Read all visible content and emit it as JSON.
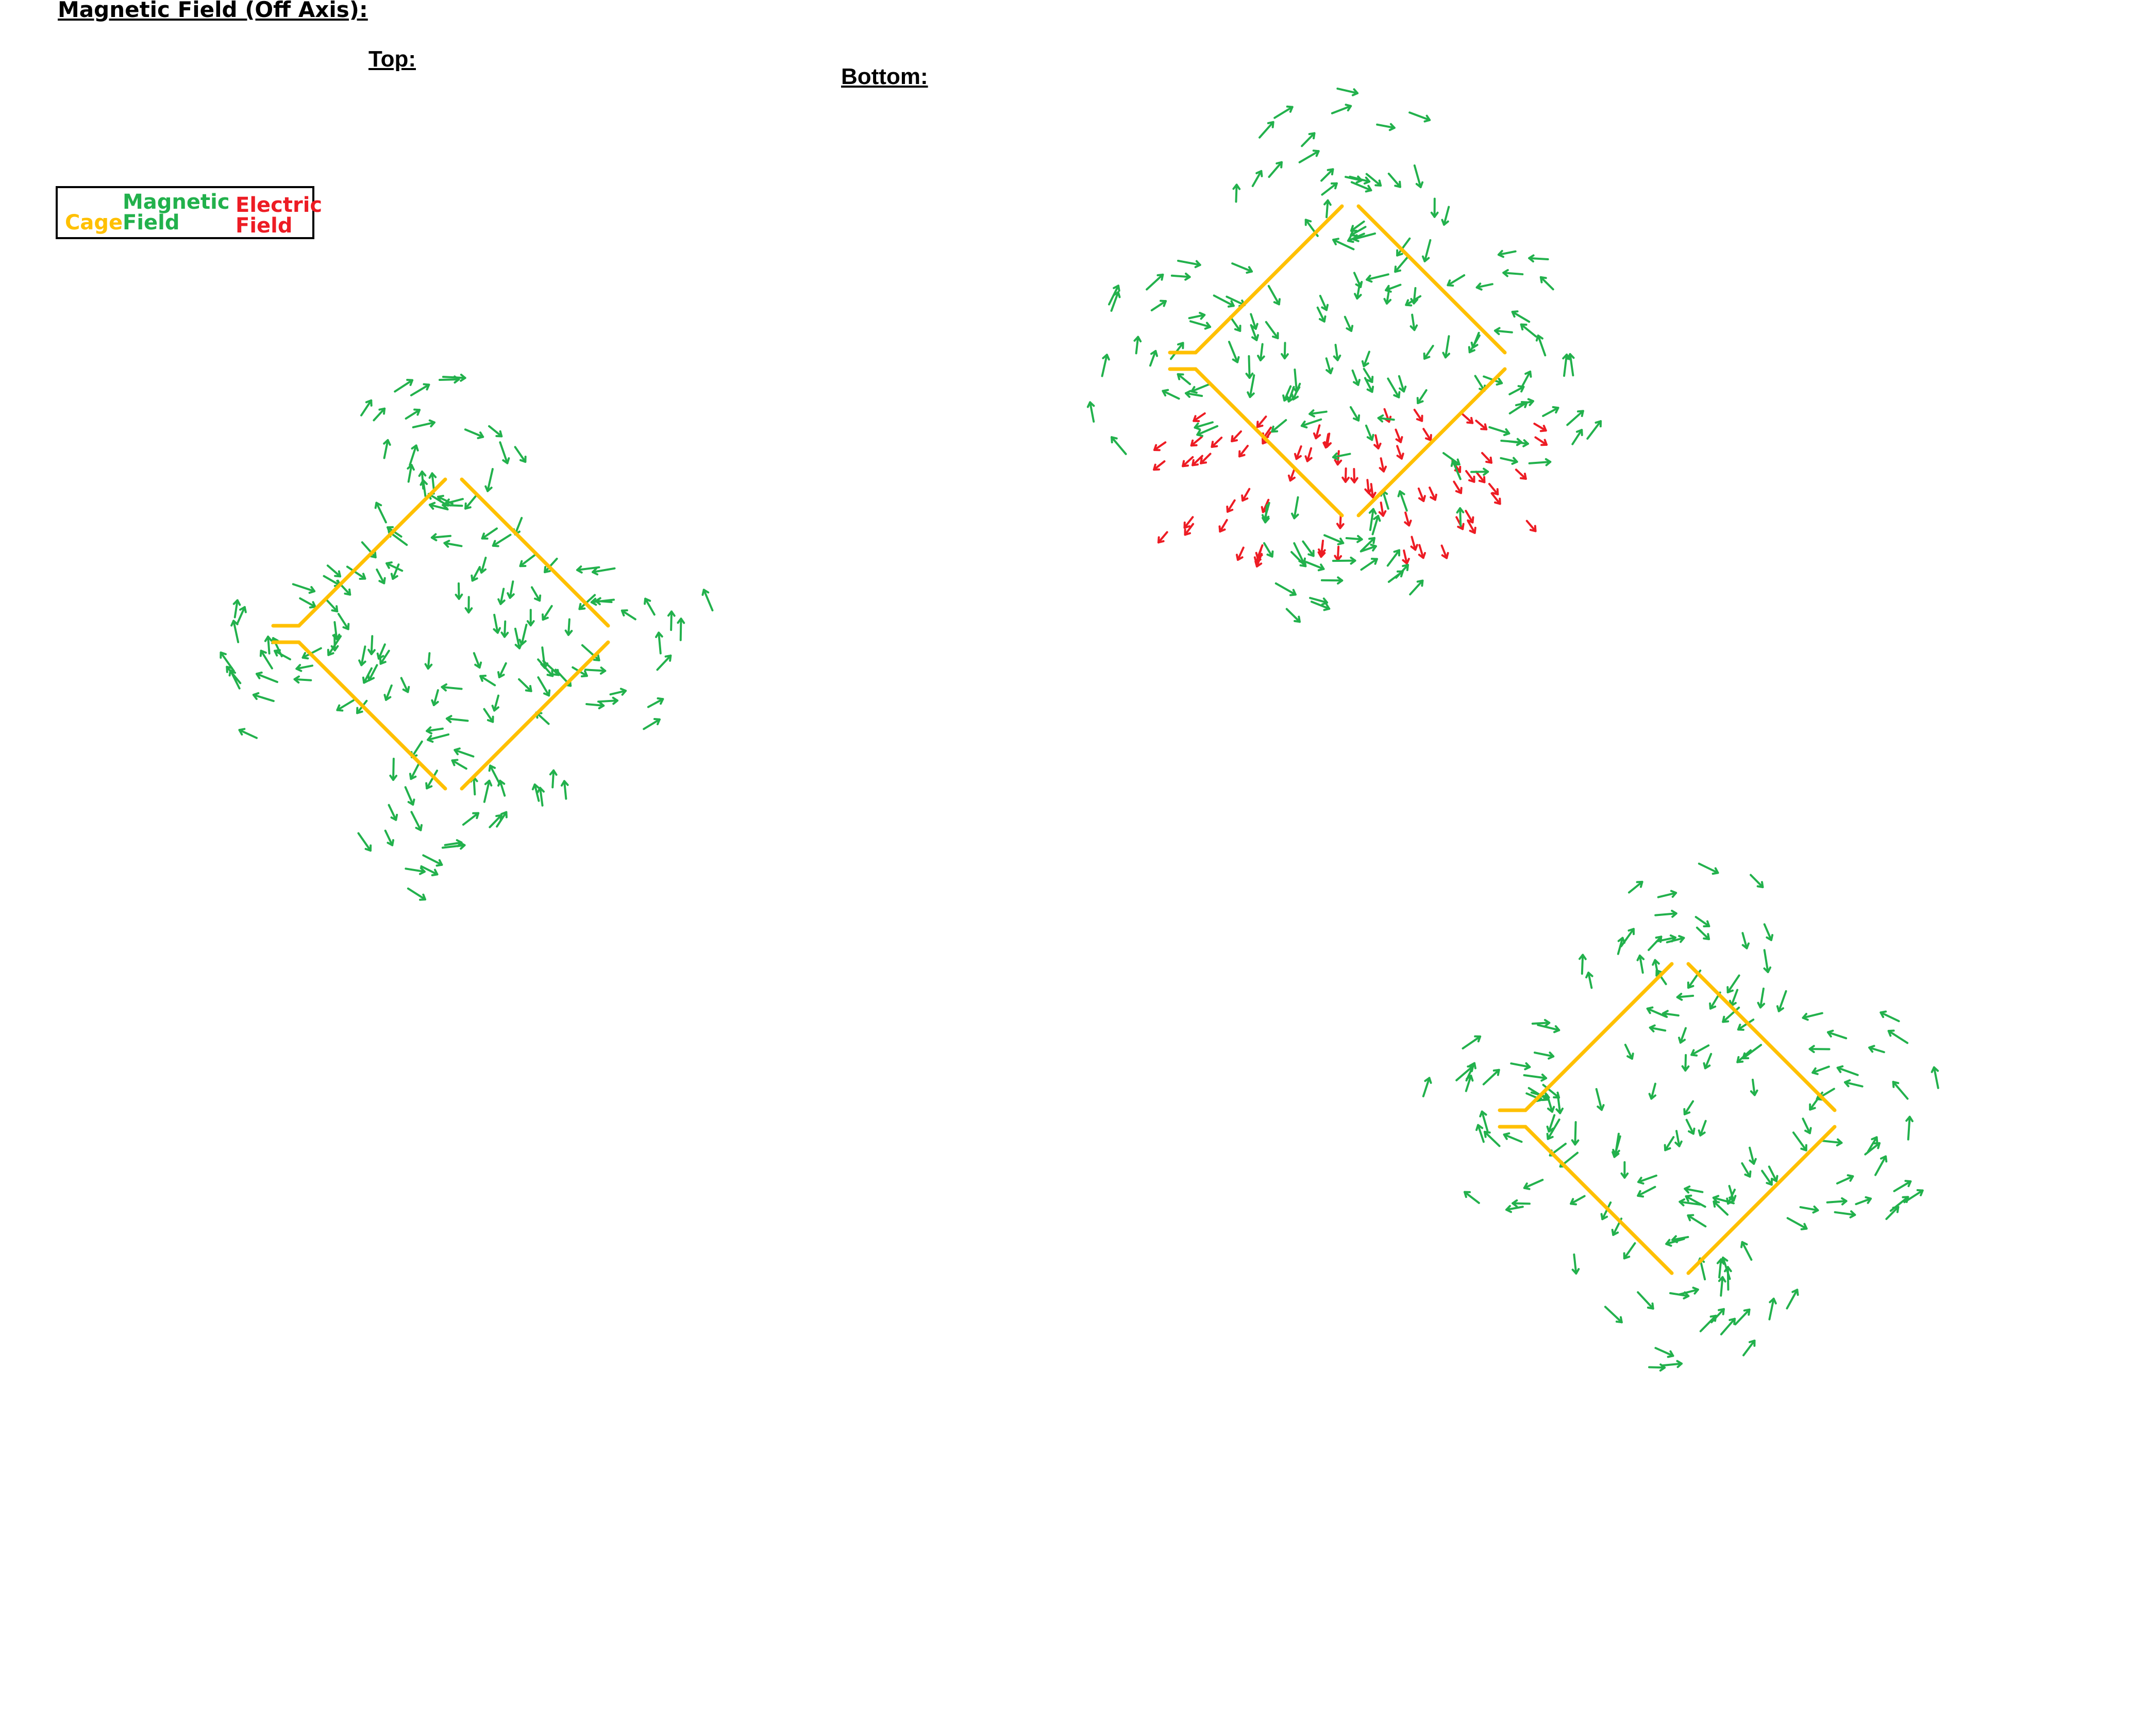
{
  "title": "Magnetic Field (Off Axis):",
  "views": {
    "top": {
      "label": "Top:"
    },
    "bottom": {
      "label": "Bottom:"
    }
  },
  "legend": {
    "cage": "Cage",
    "magnetic_line1": "Magnetic",
    "magnetic_line2": "Field",
    "electric_line1": "Electric",
    "electric_line2": "Field"
  },
  "colors": {
    "cage": "#FFC000",
    "magnetic": "#22B14C",
    "electric": "#ED1C24",
    "text": "#000000"
  },
  "diagrams": [
    {
      "id": "top-view",
      "electric_field": false
    },
    {
      "id": "bottom-view-with-electric-field",
      "electric_field": true
    },
    {
      "id": "bottom-view",
      "electric_field": false
    }
  ]
}
